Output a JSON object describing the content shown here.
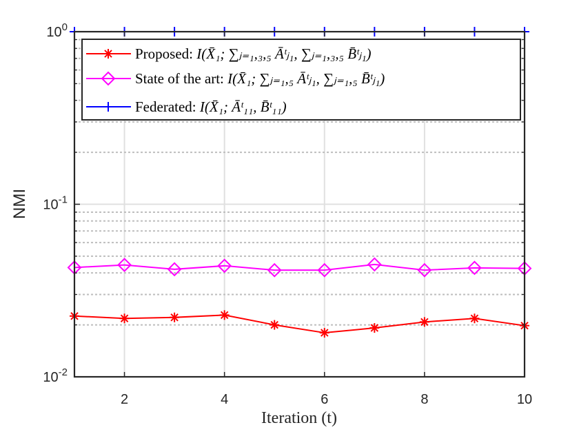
{
  "chart_data": {
    "type": "line",
    "title": "",
    "xlabel": "Iteration (t)",
    "ylabel": "NMI",
    "yscale": "log",
    "xlim": [
      1,
      10
    ],
    "ylim": [
      0.01,
      1
    ],
    "xticks": [
      2,
      4,
      6,
      8,
      10
    ],
    "xtick_labels": [
      "2",
      "4",
      "6",
      "8",
      "10"
    ],
    "yticks": [
      0.01,
      0.1,
      1
    ],
    "ytick_labels": [
      {
        "base": "10",
        "exp": "-2"
      },
      {
        "base": "10",
        "exp": "-1"
      },
      {
        "base": "10",
        "exp": "0"
      }
    ],
    "grid": true,
    "legend_position": "top",
    "x": [
      1,
      2,
      3,
      4,
      5,
      6,
      7,
      8,
      9,
      10
    ],
    "series": [
      {
        "name": "Proposed:",
        "legend_math": "I(X̄₁; ∑ⱼ₌₁,₃,₅ Āᵗⱼ₁, ∑ⱼ₌₁,₃,₅ B̄ᵗⱼ₁)",
        "color": "#ff0000",
        "marker": "asterisk",
        "values": [
          0.0225,
          0.0218,
          0.0221,
          0.0228,
          0.02,
          0.018,
          0.0192,
          0.0208,
          0.0218,
          0.0198
        ]
      },
      {
        "name": "State of the art:",
        "legend_math": "I(X̄₁; ∑ⱼ₌₁,₅ Āᵗⱼ₁, ∑ⱼ₌₁,₅ B̄ᵗⱼ₁)",
        "color": "#ff00ff",
        "marker": "diamond",
        "values": [
          0.043,
          0.0445,
          0.042,
          0.044,
          0.0415,
          0.0415,
          0.0448,
          0.0415,
          0.0428,
          0.0425
        ]
      },
      {
        "name": "Federated:",
        "legend_math": "I(X̄₁; Āᵗ₁₁, B̄ᵗ₁₁)",
        "color": "#0000ff",
        "marker": "plus",
        "values": [
          1,
          1,
          1,
          1,
          1,
          1,
          1,
          1,
          1,
          1
        ]
      }
    ]
  }
}
